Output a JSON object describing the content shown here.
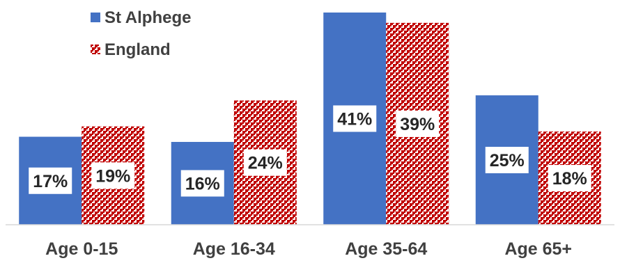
{
  "chart_data": {
    "type": "bar",
    "title": "",
    "xlabel": "",
    "ylabel": "",
    "categories": [
      "Age 0-15",
      "Age 16-34",
      "Age 35-64",
      "Age 65+"
    ],
    "series": [
      {
        "name": "St Alphege",
        "values": [
          17,
          16,
          41,
          25
        ],
        "labels": [
          "17%",
          "16%",
          "41%",
          "25%"
        ],
        "color": "#4472C4",
        "fill": "solid"
      },
      {
        "name": "England",
        "values": [
          19,
          24,
          39,
          18
        ],
        "labels": [
          "19%",
          "24%",
          "39%",
          "18%"
        ],
        "color": "#C00000",
        "fill": "red-white-checkered-pattern"
      }
    ],
    "ylim": [
      0,
      41
    ],
    "grid": false,
    "legend_position": "top-left",
    "value_axis_visible": false
  }
}
